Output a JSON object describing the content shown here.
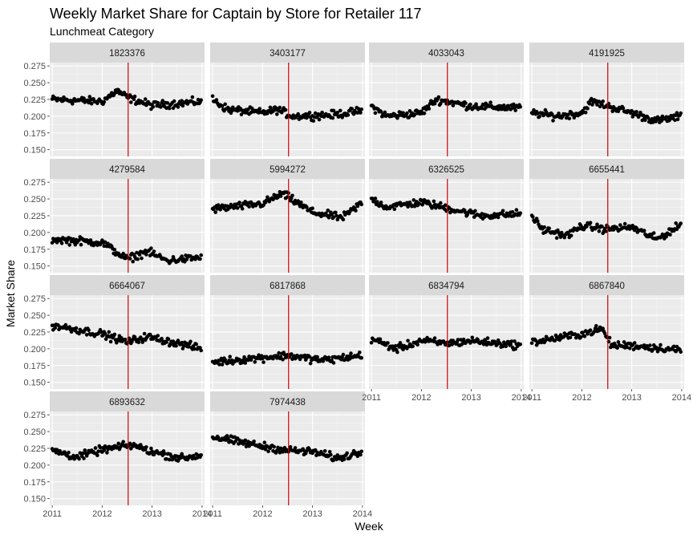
{
  "chart_data": {
    "type": "scatter",
    "title": "Weekly Market Share for Captain by Store for Retailer 117",
    "subtitle": "Lunchmeat Category",
    "xlabel": "Week",
    "ylabel": "Market Share",
    "xlim": [
      2010.95,
      2014.05
    ],
    "ylim": [
      0.14,
      0.28
    ],
    "xticks": [
      2011,
      2012,
      2013,
      2014
    ],
    "xtick_labels": [
      "2011",
      "2012",
      "2013",
      "2014"
    ],
    "yticks": [
      0.15,
      0.175,
      0.2,
      0.225,
      0.25,
      0.275
    ],
    "ytick_labels": [
      "0.150",
      "0.175",
      "0.200",
      "0.225",
      "0.250",
      "0.275"
    ],
    "grid": true,
    "facet_layout": {
      "ncol": 4,
      "nrow": 4
    },
    "vline": {
      "x": 2012.52,
      "color": "#cc0000"
    },
    "point_color": "#000000",
    "panel_background": "#ebebeb",
    "strip_background": "#d9d9d9",
    "panels": [
      {
        "store": "1823376",
        "trend": [
          [
            2011.0,
            0.225
          ],
          [
            2012.0,
            0.222
          ],
          [
            2012.3,
            0.238
          ],
          [
            2012.5,
            0.228
          ],
          [
            2013.0,
            0.216
          ],
          [
            2014.0,
            0.222
          ]
        ]
      },
      {
        "store": "3403177",
        "trend": [
          [
            2011.0,
            0.225
          ],
          [
            2011.3,
            0.21
          ],
          [
            2012.0,
            0.205
          ],
          [
            2012.3,
            0.21
          ],
          [
            2012.6,
            0.2
          ],
          [
            2013.4,
            0.202
          ],
          [
            2014.0,
            0.208
          ]
        ]
      },
      {
        "store": "4033043",
        "trend": [
          [
            2011.0,
            0.215
          ],
          [
            2011.3,
            0.2
          ],
          [
            2012.0,
            0.205
          ],
          [
            2012.3,
            0.225
          ],
          [
            2013.0,
            0.215
          ],
          [
            2014.0,
            0.212
          ]
        ]
      },
      {
        "store": "4191925",
        "trend": [
          [
            2011.0,
            0.205
          ],
          [
            2011.5,
            0.2
          ],
          [
            2012.0,
            0.205
          ],
          [
            2012.2,
            0.222
          ],
          [
            2013.0,
            0.205
          ],
          [
            2013.5,
            0.193
          ],
          [
            2014.0,
            0.2
          ]
        ]
      },
      {
        "store": "4279584",
        "trend": [
          [
            2011.0,
            0.19
          ],
          [
            2012.0,
            0.185
          ],
          [
            2012.5,
            0.16
          ],
          [
            2012.9,
            0.172
          ],
          [
            2013.3,
            0.158
          ],
          [
            2014.0,
            0.163
          ]
        ]
      },
      {
        "store": "5994272",
        "trend": [
          [
            2011.0,
            0.235
          ],
          [
            2012.0,
            0.243
          ],
          [
            2012.4,
            0.258
          ],
          [
            2013.0,
            0.23
          ],
          [
            2013.6,
            0.222
          ],
          [
            2014.0,
            0.245
          ]
        ]
      },
      {
        "store": "6326525",
        "trend": [
          [
            2011.0,
            0.25
          ],
          [
            2011.3,
            0.238
          ],
          [
            2012.0,
            0.245
          ],
          [
            2012.6,
            0.235
          ],
          [
            2013.2,
            0.225
          ],
          [
            2014.0,
            0.228
          ]
        ]
      },
      {
        "store": "6655441",
        "trend": [
          [
            2011.0,
            0.225
          ],
          [
            2011.2,
            0.205
          ],
          [
            2011.7,
            0.195
          ],
          [
            2012.0,
            0.21
          ],
          [
            2012.5,
            0.205
          ],
          [
            2013.0,
            0.208
          ],
          [
            2013.5,
            0.19
          ],
          [
            2014.0,
            0.212
          ]
        ]
      },
      {
        "store": "6664067",
        "trend": [
          [
            2011.0,
            0.235
          ],
          [
            2012.0,
            0.222
          ],
          [
            2012.5,
            0.21
          ],
          [
            2012.9,
            0.218
          ],
          [
            2014.0,
            0.2
          ]
        ]
      },
      {
        "store": "6817868",
        "trend": [
          [
            2011.0,
            0.18
          ],
          [
            2012.0,
            0.187
          ],
          [
            2012.5,
            0.19
          ],
          [
            2013.2,
            0.183
          ],
          [
            2014.0,
            0.19
          ]
        ]
      },
      {
        "store": "6834794",
        "trend": [
          [
            2011.0,
            0.215
          ],
          [
            2011.5,
            0.2
          ],
          [
            2012.0,
            0.212
          ],
          [
            2012.5,
            0.208
          ],
          [
            2013.0,
            0.212
          ],
          [
            2014.0,
            0.205
          ]
        ]
      },
      {
        "store": "6867840",
        "trend": [
          [
            2011.0,
            0.21
          ],
          [
            2012.0,
            0.222
          ],
          [
            2012.4,
            0.23
          ],
          [
            2012.6,
            0.205
          ],
          [
            2013.0,
            0.205
          ],
          [
            2014.0,
            0.198
          ]
        ]
      },
      {
        "store": "6893632",
        "trend": [
          [
            2011.0,
            0.222
          ],
          [
            2011.5,
            0.212
          ],
          [
            2012.0,
            0.223
          ],
          [
            2012.6,
            0.23
          ],
          [
            2013.0,
            0.22
          ],
          [
            2013.6,
            0.21
          ],
          [
            2014.0,
            0.215
          ]
        ]
      },
      {
        "store": "7974438",
        "trend": [
          [
            2011.0,
            0.242
          ],
          [
            2012.0,
            0.228
          ],
          [
            2012.5,
            0.222
          ],
          [
            2013.0,
            0.22
          ],
          [
            2013.5,
            0.21
          ],
          [
            2014.0,
            0.22
          ]
        ]
      }
    ]
  }
}
